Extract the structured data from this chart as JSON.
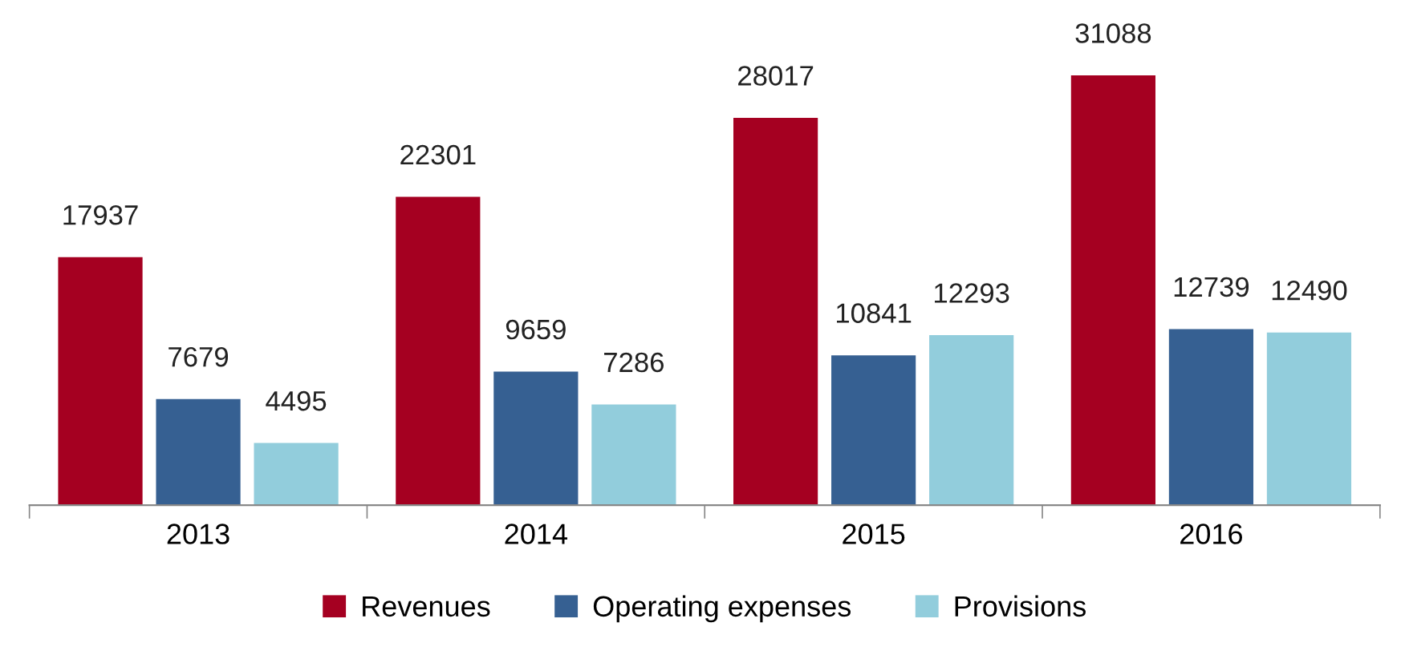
{
  "chart_data": {
    "type": "bar",
    "categories": [
      "2013",
      "2014",
      "2015",
      "2016"
    ],
    "series": [
      {
        "name": "Revenues",
        "color": "#a50021",
        "values": [
          17937,
          22301,
          28017,
          31088
        ]
      },
      {
        "name": "Operating expenses",
        "color": "#366092",
        "values": [
          7679,
          9659,
          10841,
          12739
        ]
      },
      {
        "name": "Provisions",
        "color": "#92cddc",
        "values": [
          4495,
          7286,
          12293,
          12490
        ]
      }
    ],
    "data_labels": true,
    "legend": "bottom",
    "grid": false
  }
}
